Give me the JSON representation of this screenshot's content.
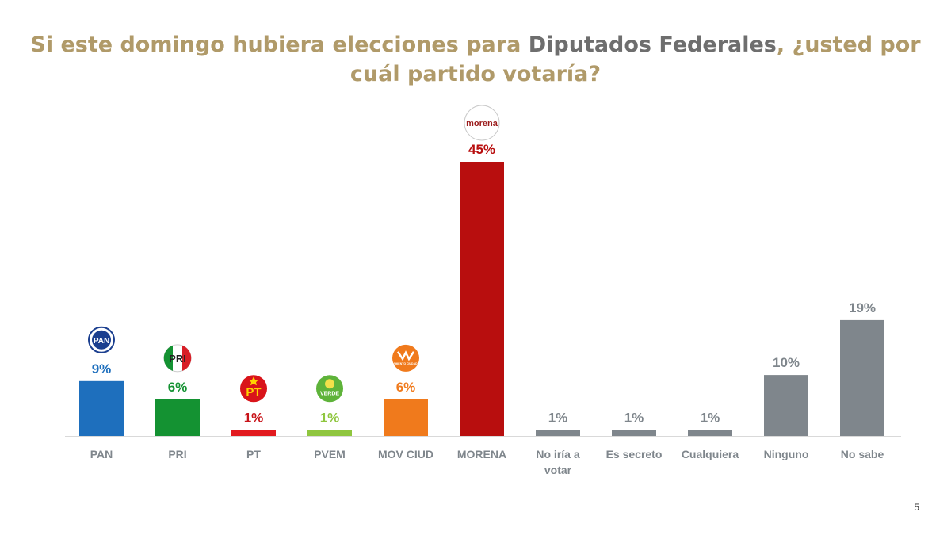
{
  "title": {
    "part1": "Si este domingo hubiera elecciones para ",
    "highlight": "Diputados Federales",
    "part2": ", ¿usted por",
    "line2": "cuál partido votaría?"
  },
  "page_number": "5",
  "chart_data": {
    "type": "bar",
    "title": "Si este domingo hubiera elecciones para Diputados Federales, ¿usted por cuál partido votaría?",
    "categories": [
      "PAN",
      "PRI",
      "PT",
      "PVEM",
      "MOV CIUD",
      "MORENA",
      "No iría a votar",
      "Es secreto",
      "Cualquiera",
      "Ninguno",
      "No sabe"
    ],
    "values": [
      9,
      6,
      1,
      1,
      6,
      45,
      1,
      1,
      1,
      10,
      19
    ],
    "value_labels": [
      "9%",
      "6%",
      "1%",
      "1%",
      "6%",
      "45%",
      "1%",
      "1%",
      "1%",
      "10%",
      "19%"
    ],
    "category_label_lines": [
      [
        "PAN"
      ],
      [
        "PRI"
      ],
      [
        "PT"
      ],
      [
        "PVEM"
      ],
      [
        "MOV CIUD"
      ],
      [
        "MORENA"
      ],
      [
        "No iría a",
        "votar"
      ],
      [
        "Es secreto"
      ],
      [
        "Cualquiera"
      ],
      [
        "Ninguno"
      ],
      [
        "No sabe"
      ]
    ],
    "colors": [
      "#1e6fbd",
      "#149232",
      "#e21a1f",
      "#8fc63f",
      "#f07a1c",
      "#b80e0e",
      "#7f868c",
      "#7f868c",
      "#7f868c",
      "#7f868c",
      "#7f868c"
    ],
    "value_label_colors": [
      "#1e6fbd",
      "#149232",
      "#c8141a",
      "#8fc63f",
      "#f07a1c",
      "#b80e0e",
      "#7f868c",
      "#7f868c",
      "#7f868c",
      "#7f868c",
      "#7f868c"
    ],
    "logos": [
      {
        "category": "PAN",
        "icon": "pan-logo-icon",
        "text": "PAN"
      },
      {
        "category": "PRI",
        "icon": "pri-logo-icon",
        "text": "PRI"
      },
      {
        "category": "PT",
        "icon": "pt-logo-icon",
        "text": "PT"
      },
      {
        "category": "PVEM",
        "icon": "pvem-logo-icon",
        "text": "VERDE"
      },
      {
        "category": "MOV CIUD",
        "icon": "movimiento-ciudadano-logo-icon",
        "text": "MOVIMIENTO CIUDADANO"
      },
      {
        "category": "MORENA",
        "icon": "morena-logo-icon",
        "text": "morena"
      }
    ],
    "ylim": [
      0,
      45
    ],
    "grid": false,
    "legend": "none"
  }
}
